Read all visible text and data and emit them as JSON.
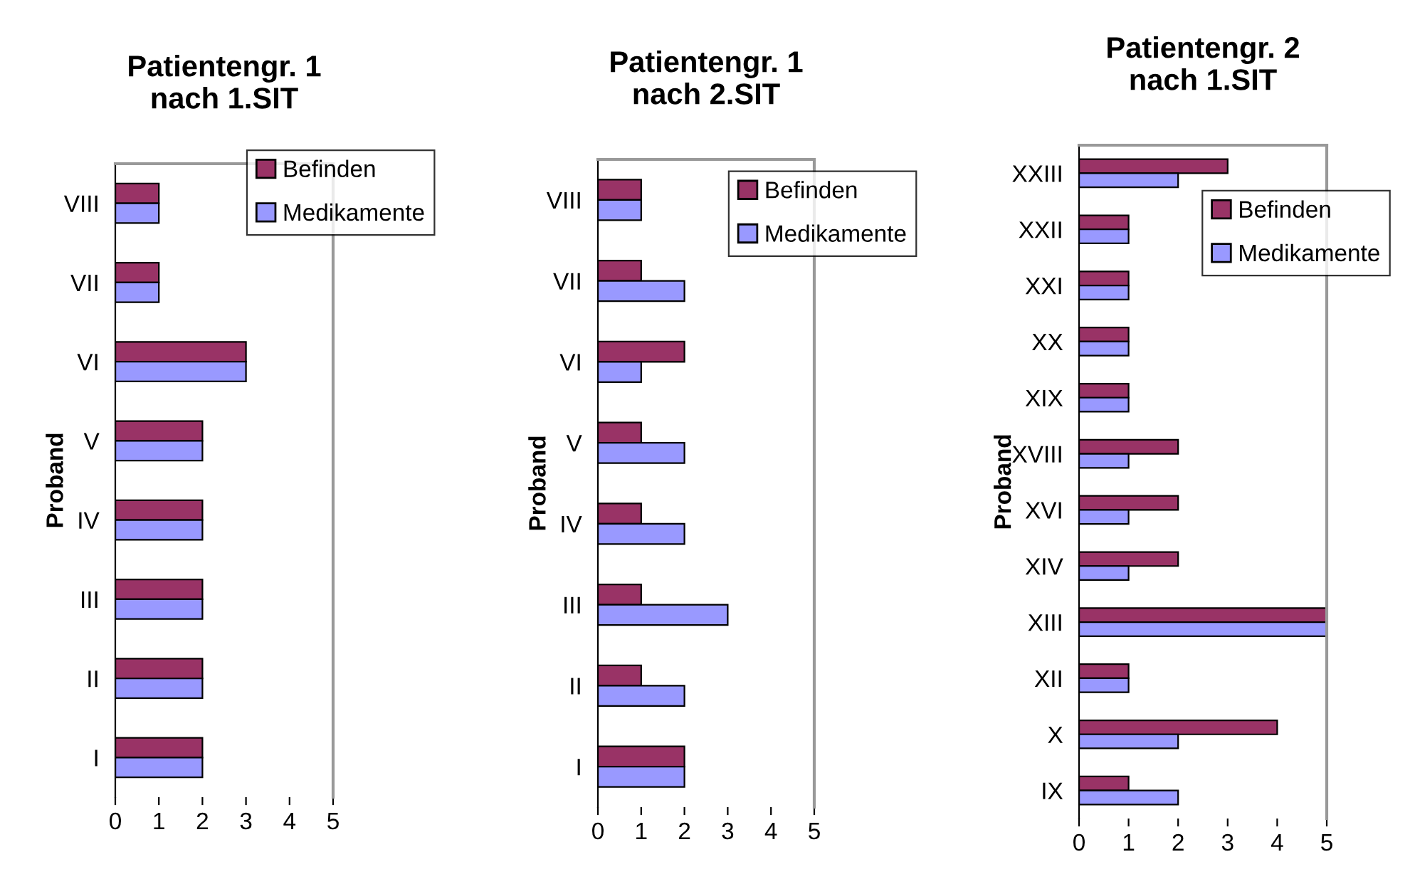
{
  "chart_data": [
    {
      "type": "bar",
      "orientation": "horizontal",
      "title": "Patientengr. 1\nnach 1.SIT",
      "ylabel": "Proband",
      "categories": [
        "VIII",
        "VII",
        "VI",
        "V",
        "IV",
        "III",
        "II",
        "I"
      ],
      "series": [
        {
          "name": "Befinden",
          "color": "#993366",
          "values": [
            1,
            1,
            3,
            2,
            2,
            2,
            2,
            2
          ]
        },
        {
          "name": "Medikamente",
          "color": "#9999ff",
          "values": [
            1,
            1,
            3,
            2,
            2,
            2,
            2,
            2
          ]
        }
      ],
      "xlim": [
        0,
        5
      ],
      "xticks": [
        0,
        1,
        2,
        3,
        4,
        5
      ],
      "grid": false,
      "legend": "top right"
    },
    {
      "type": "bar",
      "orientation": "horizontal",
      "title": "Patientengr. 1\nnach 2.SIT",
      "ylabel": "Proband",
      "categories": [
        "VIII",
        "VII",
        "VI",
        "V",
        "IV",
        "III",
        "II",
        "I"
      ],
      "series": [
        {
          "name": "Befinden",
          "color": "#993366",
          "values": [
            1,
            1,
            2,
            1,
            1,
            1,
            1,
            2
          ]
        },
        {
          "name": "Medikamente",
          "color": "#9999ff",
          "values": [
            1,
            2,
            1,
            2,
            2,
            3,
            2,
            2
          ]
        }
      ],
      "xlim": [
        0,
        5
      ],
      "xticks": [
        0,
        1,
        2,
        3,
        4,
        5
      ],
      "grid": false,
      "legend": "right"
    },
    {
      "type": "bar",
      "orientation": "horizontal",
      "title": "Patientengr. 2\nnach 1.SIT",
      "ylabel": "Proband",
      "categories": [
        "XXIII",
        "XXII",
        "XXI",
        "XX",
        "XIX",
        "XVIII",
        "XVI",
        "XIV",
        "XIII",
        "XII",
        "X",
        "IX"
      ],
      "series": [
        {
          "name": "Befinden",
          "color": "#993366",
          "values": [
            3,
            1,
            1,
            1,
            1,
            2,
            2,
            2,
            5,
            1,
            4,
            1
          ]
        },
        {
          "name": "Medikamente",
          "color": "#9999ff",
          "values": [
            2,
            1,
            1,
            1,
            1,
            1,
            1,
            1,
            5,
            1,
            2,
            2
          ]
        }
      ],
      "xlim": [
        0,
        5
      ],
      "xticks": [
        0,
        1,
        2,
        3,
        4,
        5
      ],
      "grid": false,
      "legend": "top right"
    }
  ]
}
